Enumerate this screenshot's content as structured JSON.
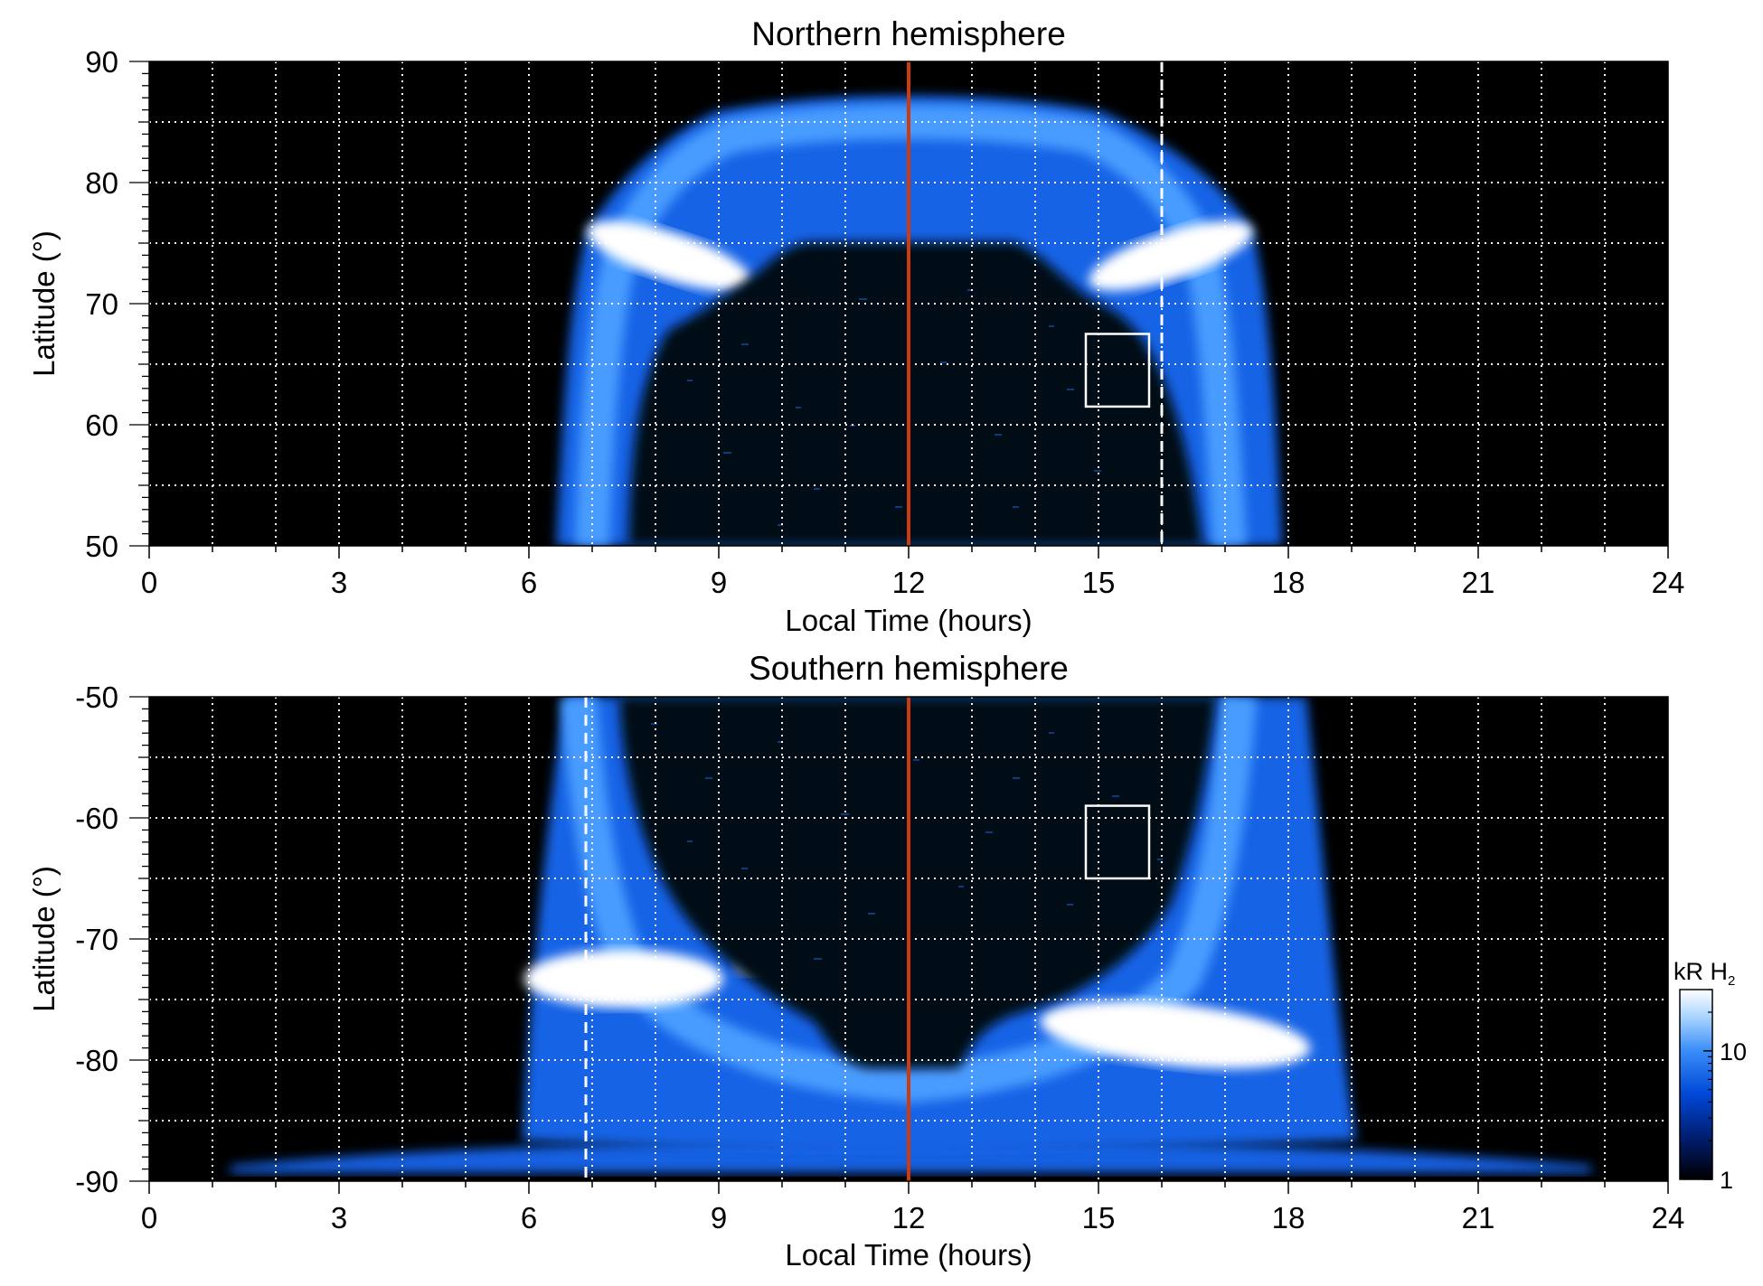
{
  "chart_data": [
    {
      "type": "heatmap",
      "title": "Northern hemisphere",
      "xlabel": "Local Time (hours)",
      "ylabel": "Latitude (°)",
      "xlim": [
        0,
        24
      ],
      "ylim": [
        50,
        90
      ],
      "x_ticks": [
        0,
        3,
        6,
        9,
        12,
        15,
        18,
        21,
        24
      ],
      "y_ticks": [
        50,
        60,
        70,
        80,
        90
      ],
      "grid": true,
      "grid_x_step": 1,
      "grid_y_step": 5,
      "emission_extent_lt": [
        6.5,
        17.9
      ],
      "dark_core_top_lat": 75,
      "bright_arcs": [
        {
          "lt_range": [
            7,
            9.5
          ],
          "lat_range": [
            70,
            77
          ]
        },
        {
          "lt_range": [
            15,
            17.5
          ],
          "lat_range": [
            70,
            77
          ]
        }
      ],
      "solid_marker_lt": 12,
      "solid_marker_color": "#cc3a10",
      "dashed_marker_lt": 16,
      "box": {
        "lt": [
          14.8,
          15.8
        ],
        "lat": [
          61.5,
          67.5
        ]
      }
    },
    {
      "type": "heatmap",
      "title": "Southern hemisphere",
      "xlabel": "Local Time (hours)",
      "ylabel": "Latitude (°)",
      "xlim": [
        0,
        24
      ],
      "ylim": [
        -90,
        -50
      ],
      "x_ticks": [
        0,
        3,
        6,
        9,
        12,
        15,
        18,
        21,
        24
      ],
      "y_ticks": [
        -50,
        -60,
        -70,
        -80,
        -90
      ],
      "grid": true,
      "grid_x_step": 1,
      "grid_y_step": 5,
      "emission_extent_lt": [
        6.2,
        18.3
      ],
      "bright_arcs": [
        {
          "lt_range": [
            6,
            8.8
          ],
          "lat_range": [
            -78,
            -71
          ]
        },
        {
          "lt_range": [
            14.5,
            18.3
          ],
          "lat_range": [
            -82,
            -75
          ]
        }
      ],
      "solid_marker_lt": 12,
      "solid_marker_color": "#cc3a10",
      "dashed_marker_lt": 6.9,
      "box": {
        "lt": [
          14.8,
          15.8
        ],
        "lat": [
          -65,
          -59
        ]
      }
    }
  ],
  "colorbar": {
    "label_main": "kR H",
    "label_sub": "2",
    "scale": "log",
    "tick_labels": [
      "1",
      "10"
    ],
    "tick_values": [
      1,
      10
    ],
    "range": [
      1,
      30
    ],
    "colors": [
      "#000000",
      "#001a66",
      "#0048d8",
      "#3a8ef8",
      "#a6d2ff",
      "#ffffff"
    ]
  },
  "colors": {
    "background": "#000000",
    "emission_mid": "#1565e8",
    "emission_bright": "#ffffff",
    "grid": "#ffffff",
    "marker": "#cc3a10"
  }
}
